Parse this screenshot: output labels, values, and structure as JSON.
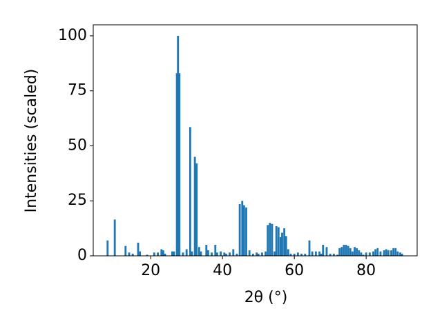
{
  "chart_data": {
    "type": "bar",
    "xlabel": "2θ (°)",
    "ylabel": "Intensities (scaled)",
    "color": "#1f77b4",
    "x": [
      8,
      10,
      13,
      14,
      15,
      16.5,
      17,
      19,
      21,
      22,
      23,
      23.5,
      24,
      26,
      26.5,
      27.3,
      27.6,
      28,
      29,
      30,
      31,
      31.5,
      32.3,
      32.8,
      33.5,
      34,
      35.5,
      36,
      37,
      38,
      38.5,
      39.5,
      40.5,
      41,
      42,
      43,
      44,
      44.8,
      45.5,
      46,
      46.6,
      47.5,
      48.5,
      49.5,
      50,
      51,
      52,
      52.6,
      53.2,
      53.8,
      54.5,
      55,
      55.6,
      56.2,
      56.6,
      57.2,
      57.7,
      58.3,
      59,
      60,
      61,
      62,
      63,
      64.2,
      65,
      66,
      67,
      67.5,
      68,
      69,
      70,
      71,
      72,
      72.6,
      73.2,
      73.8,
      74.4,
      75,
      75.6,
      76.2,
      76.8,
      77.4,
      78,
      78.6,
      79.2,
      80,
      81,
      82,
      82.6,
      83.2,
      84,
      85,
      85.6,
      86.2,
      87,
      87.6,
      88.2,
      88.8,
      89.5,
      90
    ],
    "values": [
      7,
      16.5,
      4.5,
      1.5,
      1,
      6,
      2,
      0.5,
      1.5,
      1.5,
      3,
      2.5,
      1,
      2,
      2,
      83,
      100,
      83,
      1.5,
      3,
      58.5,
      2,
      45,
      42,
      4,
      2,
      5,
      2.5,
      1.5,
      5,
      1.5,
      2,
      1.5,
      1,
      1.5,
      3,
      1,
      23.5,
      25,
      23,
      22,
      2.5,
      1,
      1.5,
      1,
      1.5,
      2,
      14,
      15,
      14.5,
      2,
      13.5,
      13,
      8.5,
      10.5,
      12.5,
      9,
      3,
      1,
      1,
      1.5,
      1,
      1,
      7,
      2,
      2,
      2,
      1,
      5,
      4,
      1,
      1,
      0.5,
      3.5,
      4,
      5,
      5,
      4.5,
      3.5,
      2,
      4,
      3.5,
      2.5,
      1.5,
      0.5,
      1.5,
      1.5,
      2,
      3,
      3.5,
      2,
      2.5,
      3,
      2.5,
      2.5,
      3.5,
      3.5,
      2,
      1.5,
      1
    ],
    "xlim": [
      4,
      94.2
    ],
    "ylim": [
      0,
      105
    ],
    "xticks": [
      20,
      40,
      60,
      80
    ],
    "yticks": [
      0,
      25,
      50,
      75,
      100
    ]
  }
}
